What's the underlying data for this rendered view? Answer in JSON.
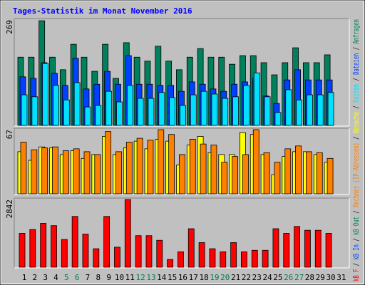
{
  "chart_data": {
    "type": "bar",
    "title": "Tages-Statistik im Monat November 2016",
    "categories": [
      "1",
      "2",
      "3",
      "4",
      "5",
      "6",
      "7",
      "8",
      "9",
      "10",
      "11",
      "12",
      "13",
      "14",
      "15",
      "16",
      "17",
      "18",
      "19",
      "20",
      "21",
      "22",
      "23",
      "24",
      "25",
      "26",
      "27",
      "28",
      "29",
      "30",
      "31"
    ],
    "category_colors": [
      "#000000",
      "#000000",
      "#000000",
      "#000000",
      "#00805c",
      "#00805c",
      "#000000",
      "#000000",
      "#000000",
      "#000000",
      "#000000",
      "#00805c",
      "#00805c",
      "#000000",
      "#000000",
      "#000000",
      "#000000",
      "#000000",
      "#00805c",
      "#00805c",
      "#000000",
      "#000000",
      "#000000",
      "#000000",
      "#000000",
      "#00805c",
      "#00805c",
      "#000000",
      "#000000",
      "#000000",
      "#000000"
    ],
    "legend_separator": " / ",
    "panels": [
      {
        "ylim": [
          0,
          269
        ],
        "yticks": [
          269
        ],
        "series": [
          {
            "name": "Anfragen",
            "color": "#00805c",
            "values": [
              174,
              174,
              267,
              174,
              142,
              207,
              174,
              138,
              207,
              120,
              211,
              174,
              164,
              202,
              164,
              142,
              174,
              196,
              174,
              174,
              156,
              178,
              178,
              160,
              129,
              160,
              198,
              160,
              160,
              180,
              0
            ]
          },
          {
            "name": "Dateien",
            "color": "#0040ff",
            "values": [
              124,
              120,
              160,
              133,
              102,
              171,
              93,
              105,
              138,
              105,
              178,
              105,
              105,
              102,
              102,
              87,
              111,
              105,
              93,
              87,
              105,
              111,
              120,
              75,
              56,
              116,
              142,
              116,
              116,
              116,
              0
            ]
          },
          {
            "name": "Seiten",
            "color": "#00e0ff",
            "values": [
              78,
              73,
              158,
              102,
              65,
              109,
              47,
              51,
              87,
              60,
              102,
              69,
              69,
              84,
              71,
              51,
              78,
              87,
              80,
              69,
              73,
              102,
              134,
              73,
              33,
              91,
              65,
              78,
              78,
              84,
              0
            ]
          }
        ]
      },
      {
        "ylim": [
          0,
          67
        ],
        "yticks": [
          67
        ],
        "series": [
          {
            "name": "Besuche",
            "color": "#ffff00",
            "values": [
              44,
              35,
              49,
              48,
              41,
              45,
              37,
              41,
              60,
              41,
              48,
              55,
              47,
              57,
              55,
              30,
              51,
              60,
              43,
              41,
              41,
              64,
              62,
              41,
              20,
              39,
              44,
              44,
              41,
              33,
              0
            ]
          },
          {
            "name": "Rechner (IP-Adressen)",
            "color": "#ff8000",
            "values": [
              54,
              46,
              48,
              49,
              45,
              47,
              44,
              41,
              65,
              44,
              54,
              58,
              56,
              67,
              62,
              41,
              57,
              52,
              51,
              33,
              39,
              41,
              67,
              43,
              33,
              47,
              50,
              44,
              43,
              37,
              0
            ]
          }
        ]
      },
      {
        "ylim": [
          0,
          2842
        ],
        "yticks": [
          2842
        ],
        "series": [
          {
            "name": "kB F",
            "color": "#ff0000",
            "values": [
              1421,
              1582,
              1840,
              1744,
              1163,
              2131,
              1389,
              775,
              2131,
              840,
              2842,
              1324,
              1324,
              1130,
              323,
              646,
              1615,
              1033,
              775,
              646,
              1033,
              646,
              710,
              710,
              1615,
              1421,
              1711,
              1550,
              1550,
              1421,
              0
            ]
          }
        ],
        "extra_legend": [
          {
            "name": "kB In",
            "color": "#0040ff"
          },
          {
            "name": "kB Out",
            "color": "#00805c"
          }
        ]
      }
    ]
  }
}
